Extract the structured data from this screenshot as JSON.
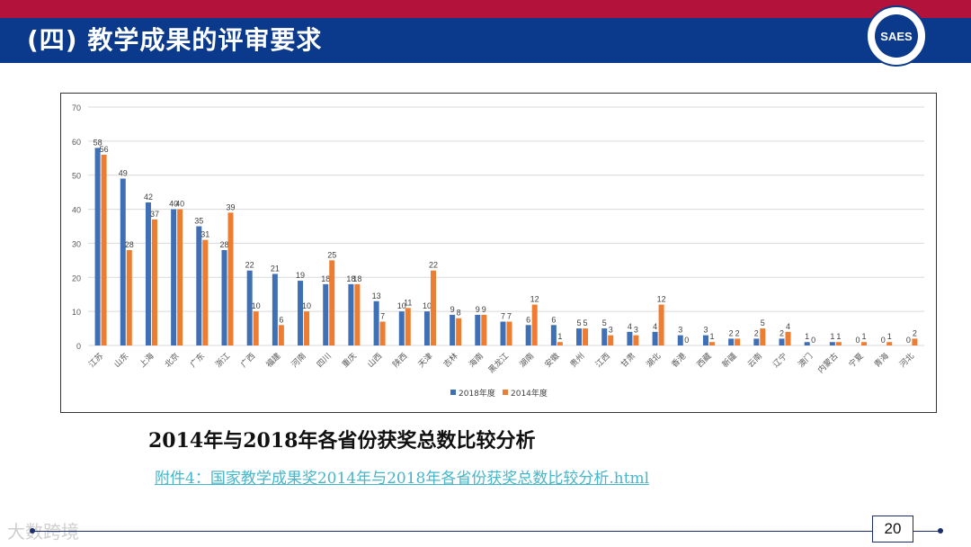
{
  "header": {
    "title": "(四) 教学成果的评审要求",
    "logo_text": "SAES"
  },
  "chart_data": {
    "type": "bar",
    "categories": [
      "江苏",
      "山东",
      "上海",
      "北京",
      "广东",
      "浙江",
      "广西",
      "福建",
      "河南",
      "四川",
      "重庆",
      "山西",
      "陕西",
      "天津",
      "吉林",
      "海南",
      "黑龙江",
      "湖南",
      "安徽",
      "贵州",
      "江西",
      "甘肃",
      "湖北",
      "香港",
      "西藏",
      "新疆",
      "云南",
      "辽宁",
      "澳门",
      "内蒙古",
      "宁夏",
      "青海",
      "河北"
    ],
    "series": [
      {
        "name": "2018年度",
        "color": "#3f6fb5",
        "values": [
          58,
          49,
          42,
          40,
          35,
          28,
          22,
          21,
          19,
          18,
          18,
          13,
          10,
          10,
          9,
          9,
          7,
          6,
          6,
          5,
          5,
          4,
          4,
          3,
          3,
          2,
          2,
          2,
          1,
          1,
          0,
          0,
          0
        ]
      },
      {
        "name": "2014年度",
        "color": "#ed7d31",
        "values": [
          56,
          28,
          37,
          40,
          31,
          39,
          10,
          6,
          10,
          25,
          18,
          7,
          11,
          22,
          8,
          9,
          7,
          12,
          1,
          5,
          3,
          3,
          12,
          0,
          1,
          2,
          5,
          4,
          0,
          1,
          1,
          1,
          2
        ]
      }
    ],
    "yticks": [
      "0",
      "10",
      "20",
      "30",
      "40",
      "50",
      "60",
      "70"
    ],
    "ylim": [
      0,
      70
    ],
    "legend_position": "bottom"
  },
  "caption": "2014年与2018年各省份获奖总数比较分析",
  "link_text": "附件4：国家教学成果奖2014年与2018年各省份获奖总数比较分析.html",
  "page_number": "20",
  "watermark": "大数跨境"
}
